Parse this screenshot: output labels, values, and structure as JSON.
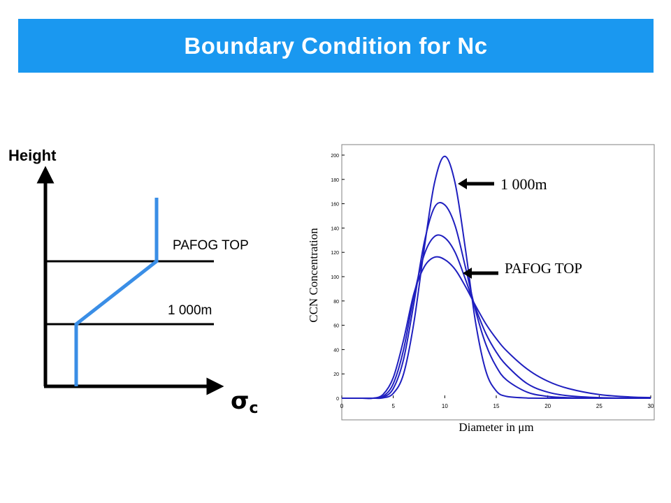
{
  "slide": {
    "title": "Boundary Condition for Nc",
    "colors": {
      "title_bar": "#1a98f0",
      "profile_line": "#3a8ee6",
      "axes": "#000000",
      "curves": "#1f1fbf"
    }
  },
  "chart_data": [
    {
      "type": "line",
      "ylabel": "Height",
      "xlabel_symbol": "σ",
      "xlabel_subscript": "c",
      "annotations": [
        "PAFOG TOP",
        "1 000m"
      ],
      "note": "Schematic vertical profile of sigma_c: constant below 1 000m, increasing linearly between 1 000m and PAFOG TOP, constant above."
    },
    {
      "type": "line",
      "xlabel": "Diameter in μm",
      "ylabel": "CCN Concentration",
      "xlim": [
        0,
        30
      ],
      "ylim": [
        0,
        200
      ],
      "xticks": [
        0,
        5,
        10,
        15,
        20,
        25,
        30
      ],
      "yticks": [
        0,
        20,
        40,
        60,
        80,
        100,
        120,
        140,
        160,
        180,
        200
      ],
      "x": [
        0,
        2,
        3,
        4,
        5,
        6,
        7,
        8,
        9,
        10,
        11,
        12,
        13,
        14,
        15,
        16,
        18,
        20,
        22,
        25,
        28,
        30
      ],
      "series": [
        {
          "values": [
            0,
            0,
            0,
            0.3,
            4,
            20,
            62,
            123,
            177,
            199,
            177,
            123,
            62,
            22,
            6,
            1.5,
            0.2,
            0,
            0,
            0,
            0,
            0
          ]
        },
        {
          "values": [
            0,
            0,
            0,
            0.8,
            8,
            32,
            78,
            128,
            157,
            159,
            142,
            108,
            72,
            44,
            26,
            15,
            5,
            1.5,
            0.4,
            0,
            0,
            0
          ]
        },
        {
          "values": [
            0,
            0,
            0,
            1.5,
            12,
            40,
            84,
            118,
            133,
            132,
            120,
            98,
            74,
            53,
            38,
            27,
            12,
            5,
            2,
            0.5,
            0.1,
            0
          ]
        },
        {
          "values": [
            0,
            0,
            0,
            3,
            17,
            48,
            86,
            108,
            116,
            114,
            106,
            92,
            76,
            61,
            49,
            39,
            24,
            14,
            8,
            3,
            1,
            0.5
          ]
        }
      ],
      "annotations": [
        {
          "text": "1 000m",
          "x": 10,
          "y": 199
        },
        {
          "text": "PAFOG TOP",
          "x": 12.5,
          "y": 107
        }
      ]
    }
  ]
}
